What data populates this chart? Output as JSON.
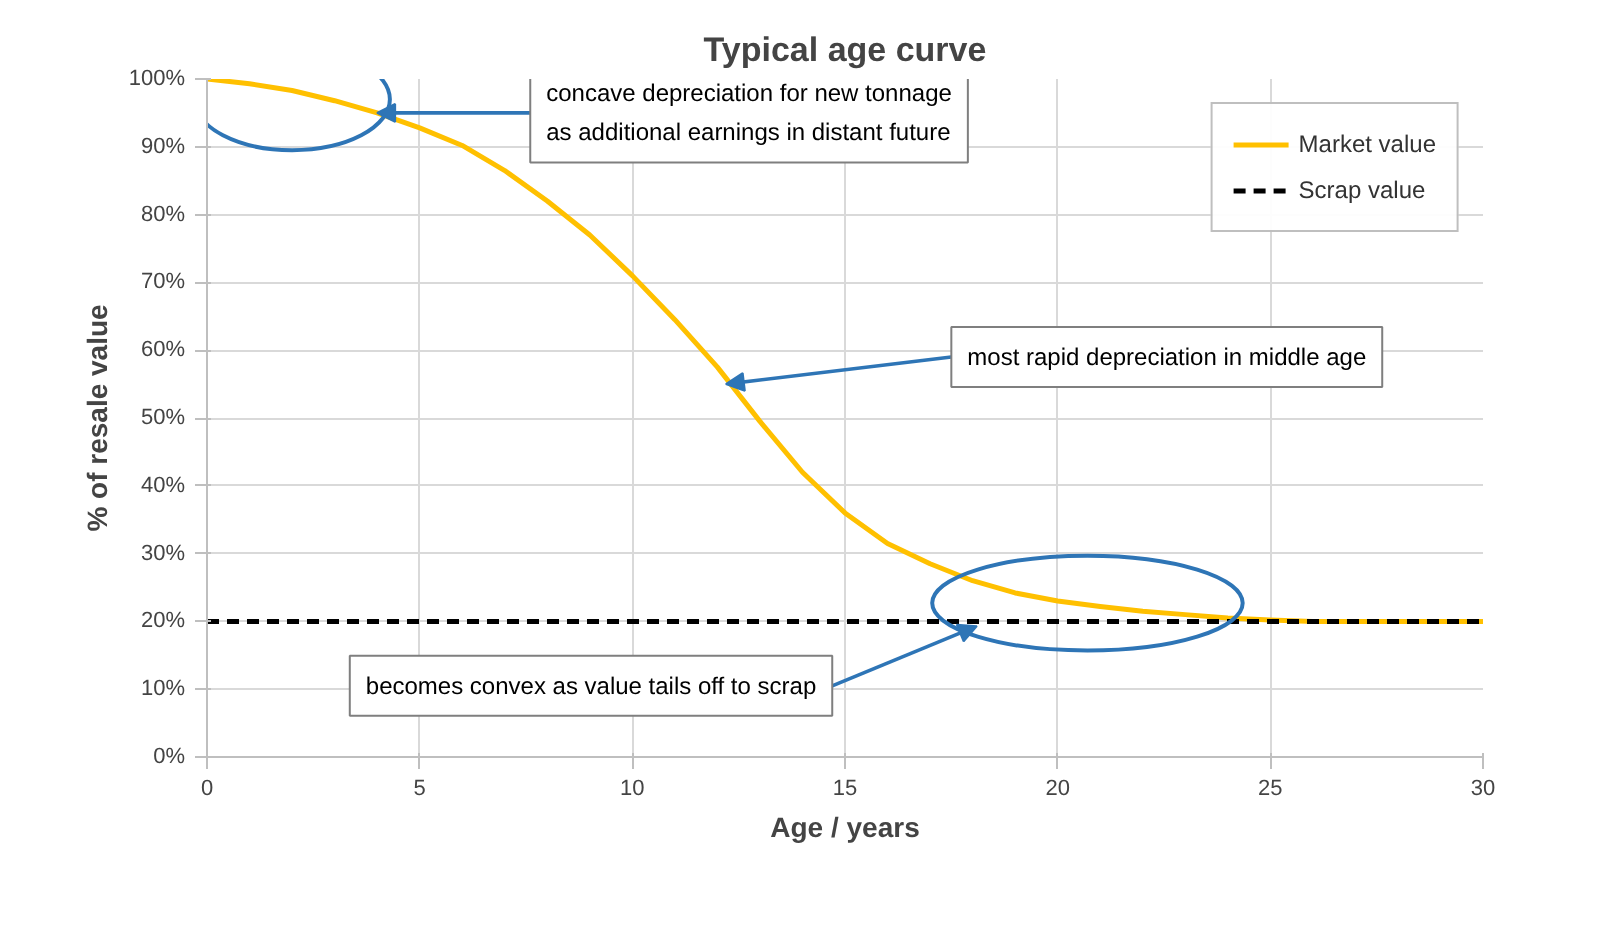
{
  "chart_data": {
    "type": "line",
    "title": "Typical age curve",
    "xlabel": "Age / years",
    "ylabel": "% of resale value",
    "xlim": [
      0,
      30
    ],
    "xticks": [
      0,
      5,
      10,
      15,
      20,
      25,
      30
    ],
    "ylim": [
      0,
      100
    ],
    "yticks": [
      {
        "value": 0,
        "label": "0%"
      },
      {
        "value": 10,
        "label": "10%"
      },
      {
        "value": 20,
        "label": "20%"
      },
      {
        "value": 30,
        "label": "30%"
      },
      {
        "value": 40,
        "label": "40%"
      },
      {
        "value": 50,
        "label": "50%"
      },
      {
        "value": 60,
        "label": "60%"
      },
      {
        "value": 70,
        "label": "70%"
      },
      {
        "value": 80,
        "label": "80%"
      },
      {
        "value": 90,
        "label": "90%"
      },
      {
        "value": 100,
        "label": "100%"
      }
    ],
    "grid": true,
    "legend": "top right",
    "marker": "none",
    "series": [
      {
        "name": "Market value",
        "color": "#ffc000",
        "line_style": "solid",
        "x": [
          0,
          1,
          2,
          3,
          4,
          5,
          6,
          7,
          8,
          9,
          10,
          11,
          12,
          13,
          14,
          15,
          16,
          17,
          18,
          19,
          20,
          21,
          22,
          23,
          24,
          25,
          26,
          28,
          30
        ],
        "values": [
          100,
          99.3,
          98.3,
          96.8,
          95,
          92.8,
          90.2,
          86.5,
          82,
          77,
          71,
          64.5,
          57.5,
          49.5,
          42,
          36,
          31.5,
          28.5,
          26,
          24.2,
          23,
          22.2,
          21.5,
          21,
          20.5,
          20.2,
          20,
          20,
          20
        ]
      },
      {
        "name": "Scrap value",
        "color": "#000000",
        "line_style": "dashed",
        "x": [
          0,
          30
        ],
        "values": [
          20,
          20
        ]
      }
    ],
    "annotations": [
      {
        "text": "concave depreciation for new tonnage\nas additional earnings in distant future",
        "x": 4,
        "y": 95
      },
      {
        "text": "most rapid depreciation in middle age",
        "x": 12.2,
        "y": 55
      },
      {
        "text": "becomes convex as value tails off to scrap",
        "x": 18.1,
        "y": 19.3
      }
    ]
  }
}
